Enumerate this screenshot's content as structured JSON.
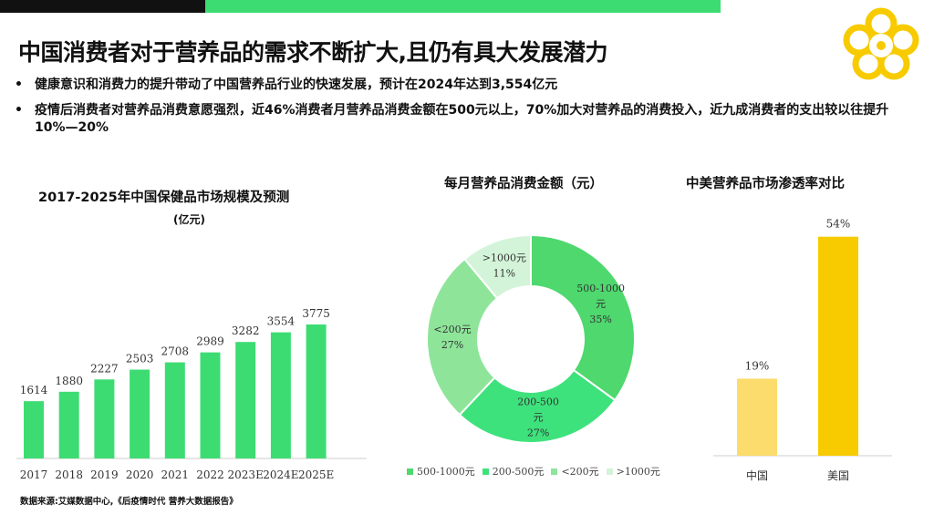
{
  "header": {
    "title": "中国消费者对于营养品的需求不断扩大,且仍有具大发展潜力",
    "bullets": [
      "健康意识和消费力的提升带动了中国营养品行业的快速发展，预计在2024年达到3,554亿元",
      "疫情后消费者对营养品消费意愿强烈，近46%消费者月营养品消费金额在500元以上，70%加大对营养品的消费投入，近九成消费者的支出较以往提升10%—20%"
    ]
  },
  "colors": {
    "accent_green": "#3ddc72",
    "accent_yellow": "#f7cb00",
    "dark": "#111111"
  },
  "icons": {
    "logo": "flower-logo-icon"
  },
  "source": "数据来源:艾媒数据中心,《后疫情时代 营养大数据报告》",
  "chart_data": [
    {
      "type": "bar",
      "title": "2017-2025年中国保健品市场规模及预测",
      "unit": "(亿元)",
      "categories": [
        "2017",
        "2018",
        "2019",
        "2020",
        "2021",
        "2022",
        "2023E",
        "2024E",
        "2025E"
      ],
      "values": [
        1614,
        1880,
        2227,
        2503,
        2708,
        2989,
        3282,
        3554,
        3775
      ],
      "data_labels": [
        "1614",
        "1880",
        "2227",
        "2503",
        "2708",
        "2989",
        "3282",
        "3554",
        "3775"
      ],
      "color": "#3ddc72",
      "ylim": [
        0,
        4000
      ],
      "grid": false
    },
    {
      "type": "pie",
      "donut": true,
      "title": "每月营养品消费金额（元）",
      "slices": [
        {
          "name": "500-1000元",
          "value": 35,
          "label": "500-1000元",
          "pct": "35%",
          "color": "#4ed86e"
        },
        {
          "name": "200-500元",
          "value": 27,
          "label": "200-500元",
          "pct": "27%",
          "color": "#3ee27c"
        },
        {
          "name": "<200元",
          "value": 27,
          "label": "<200元",
          "pct": "27%",
          "color": "#8ee59a"
        },
        {
          "name": ">1000元",
          "value": 11,
          "label": ">1000元",
          "pct": "11%",
          "color": "#d3f4d8"
        }
      ],
      "legend": [
        "500-1000元",
        "200-500元",
        "<200元",
        ">1000元"
      ],
      "legend_position": "bottom"
    },
    {
      "type": "bar",
      "title": "中美营养品市场渗透率对比",
      "categories": [
        "中国",
        "美国"
      ],
      "values": [
        19,
        54
      ],
      "data_labels": [
        "19%",
        "54%"
      ],
      "colors": [
        "#fbdc6c",
        "#f7cb00"
      ],
      "ylim": [
        0,
        60
      ],
      "grid": false
    }
  ]
}
